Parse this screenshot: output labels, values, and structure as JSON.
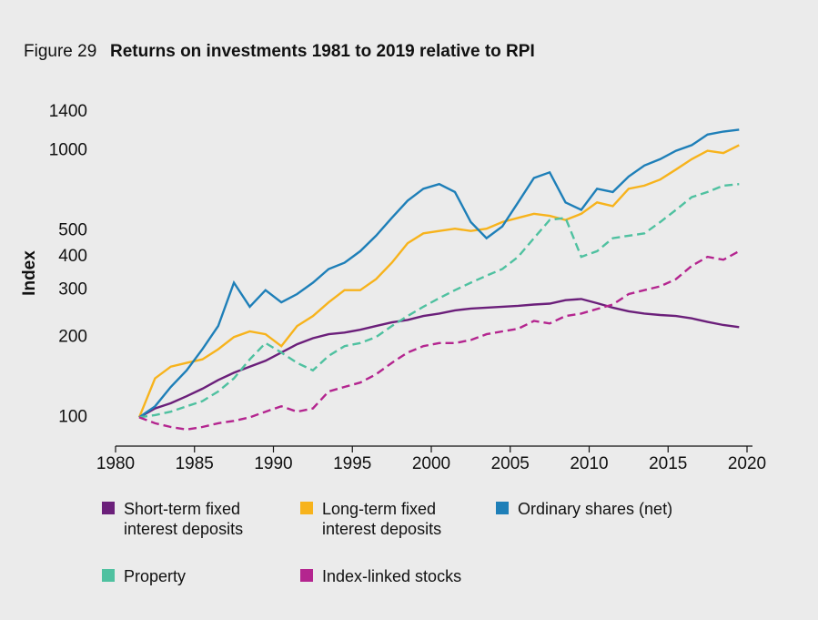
{
  "chart_data": {
    "type": "line",
    "figure_label": "Figure 29",
    "title": "Returns on investments 1981 to 2019 relative to RPI",
    "ylabel": "Index",
    "log_y": true,
    "xlim": [
      1980,
      2020
    ],
    "xticks": [
      1980,
      1985,
      1990,
      1995,
      2000,
      2005,
      2010,
      2015,
      2020
    ],
    "ylim": [
      78,
      1500
    ],
    "yticks": [
      100,
      200,
      300,
      400,
      500,
      1000,
      1400
    ],
    "x": [
      1981.5,
      1982.5,
      1983.5,
      1984.5,
      1985.5,
      1986.5,
      1987.5,
      1988.5,
      1989.5,
      1990.5,
      1991.5,
      1992.5,
      1993.5,
      1994.5,
      1995.5,
      1996.5,
      1997.5,
      1998.5,
      1999.5,
      2000.5,
      2001.5,
      2002.5,
      2003.5,
      2004.5,
      2005.5,
      2006.5,
      2007.5,
      2008.5,
      2009.5,
      2010.5,
      2011.5,
      2012.5,
      2013.5,
      2014.5,
      2015.5,
      2016.5,
      2017.5,
      2018.5,
      2019.5
    ],
    "series": [
      {
        "name": "Short-term fixed interest deposits",
        "color": "#6b1f7a",
        "dash": false,
        "values": [
          100,
          108,
          113,
          120,
          128,
          138,
          147,
          155,
          163,
          175,
          188,
          198,
          205,
          208,
          213,
          220,
          227,
          232,
          240,
          245,
          252,
          256,
          258,
          260,
          262,
          265,
          267,
          275,
          278,
          268,
          258,
          250,
          245,
          242,
          240,
          235,
          228,
          222,
          218
        ]
      },
      {
        "name": "Long-term fixed interest deposits",
        "color": "#f7b31c",
        "dash": false,
        "values": [
          100,
          140,
          155,
          160,
          165,
          180,
          200,
          210,
          205,
          185,
          220,
          240,
          270,
          300,
          300,
          330,
          380,
          450,
          490,
          500,
          510,
          500,
          510,
          540,
          560,
          580,
          570,
          550,
          580,
          640,
          620,
          720,
          740,
          780,
          850,
          930,
          1000,
          980,
          1050
        ]
      },
      {
        "name": "Ordinary shares (net)",
        "color": "#1e7fb8",
        "dash": false,
        "values": [
          100,
          110,
          130,
          150,
          180,
          220,
          320,
          260,
          300,
          270,
          290,
          320,
          360,
          380,
          420,
          480,
          560,
          650,
          720,
          750,
          700,
          540,
          470,
          520,
          640,
          790,
          830,
          640,
          600,
          720,
          700,
          800,
          880,
          930,
          1000,
          1050,
          1150,
          1180,
          1200
        ]
      },
      {
        "name": "Property",
        "color": "#4fc1a0",
        "dash": true,
        "values": [
          100,
          102,
          105,
          110,
          115,
          125,
          140,
          165,
          190,
          175,
          160,
          150,
          170,
          185,
          190,
          200,
          220,
          240,
          260,
          280,
          300,
          320,
          340,
          360,
          400,
          470,
          550,
          560,
          400,
          420,
          470,
          480,
          490,
          540,
          600,
          670,
          700,
          740,
          750
        ]
      },
      {
        "name": "Index-linked stocks",
        "color": "#b4258f",
        "dash": true,
        "values": [
          100,
          95,
          92,
          90,
          92,
          95,
          97,
          100,
          105,
          110,
          105,
          108,
          125,
          130,
          135,
          145,
          160,
          175,
          185,
          190,
          190,
          195,
          205,
          210,
          215,
          230,
          225,
          240,
          245,
          255,
          265,
          290,
          300,
          310,
          330,
          370,
          400,
          390,
          420
        ]
      }
    ]
  }
}
